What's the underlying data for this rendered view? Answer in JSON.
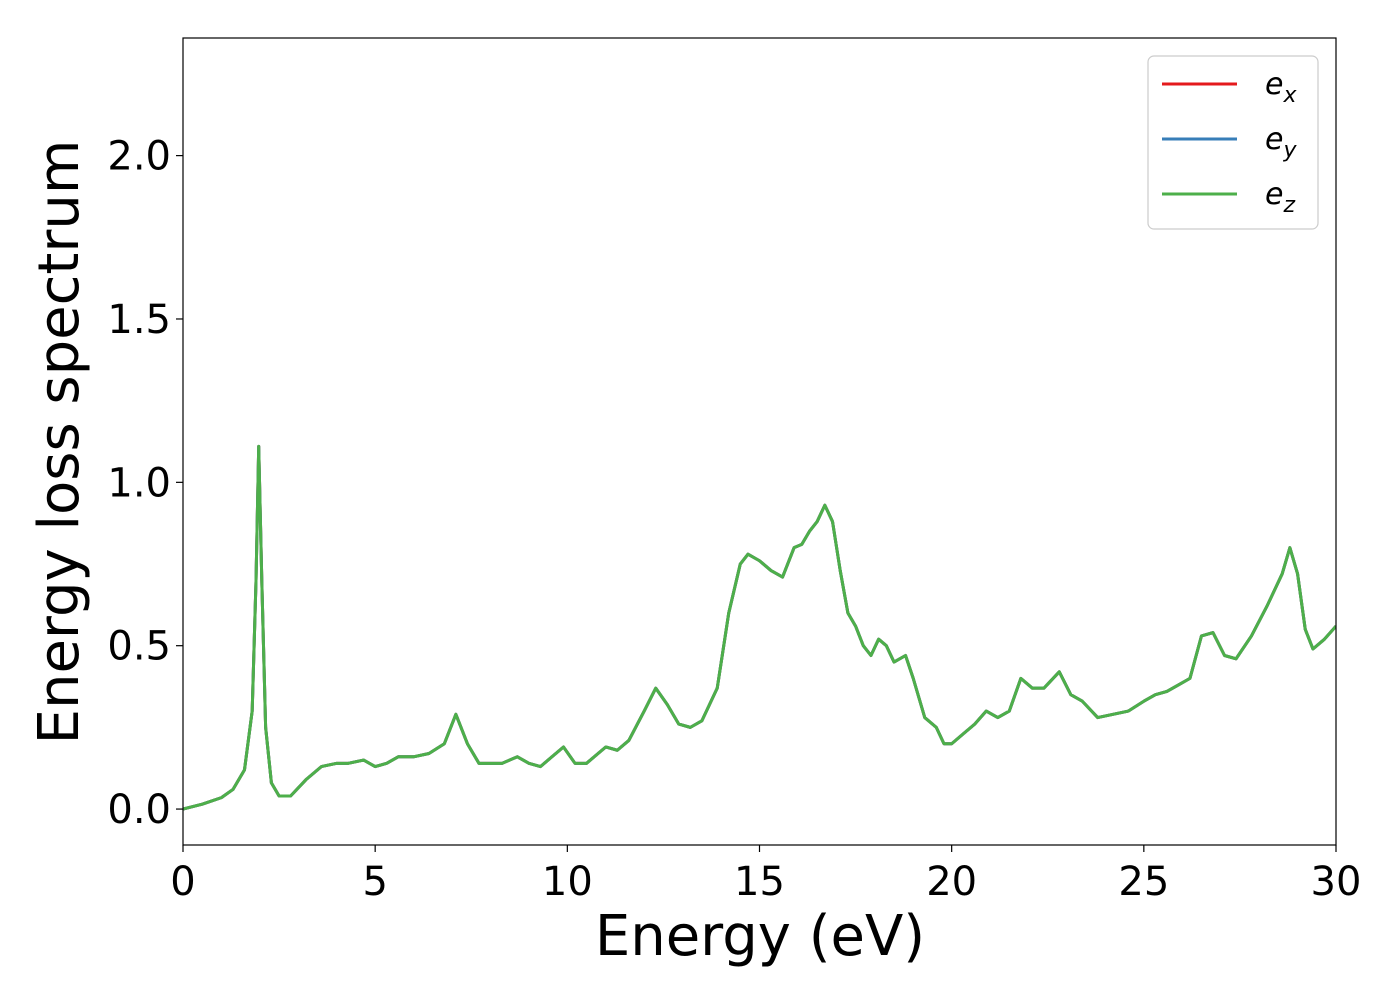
{
  "chart_data": {
    "type": "line",
    "title": "",
    "xlabel": "Energy (eV)",
    "ylabel": "Energy loss spectrum",
    "xlim": [
      0,
      30
    ],
    "ylim": [
      -0.11,
      2.36
    ],
    "xticks": [
      0,
      5,
      10,
      15,
      20,
      25,
      30
    ],
    "xtick_labels": [
      "0",
      "5",
      "10",
      "15",
      "20",
      "25",
      "30"
    ],
    "yticks": [
      0.0,
      0.5,
      1.0,
      1.5,
      2.0
    ],
    "ytick_labels": [
      "0.0",
      "0.5",
      "1.0",
      "1.5",
      "2.0"
    ],
    "grid": false,
    "legend_position": "top-right",
    "note_overlap": "All three series coincide; the green curve is drawn on top.",
    "x": [
      0.0,
      0.5,
      1.0,
      1.3,
      1.6,
      1.8,
      1.9,
      1.97,
      2.05,
      2.15,
      2.3,
      2.5,
      2.8,
      3.2,
      3.6,
      4.0,
      4.3,
      4.7,
      5.0,
      5.3,
      5.6,
      6.0,
      6.4,
      6.8,
      7.1,
      7.4,
      7.7,
      8.0,
      8.3,
      8.7,
      9.0,
      9.3,
      9.6,
      9.9,
      10.2,
      10.5,
      10.8,
      11.0,
      11.3,
      11.6,
      12.0,
      12.3,
      12.6,
      12.9,
      13.2,
      13.5,
      13.9,
      14.2,
      14.5,
      14.7,
      15.0,
      15.3,
      15.6,
      15.9,
      16.1,
      16.3,
      16.5,
      16.7,
      16.9,
      17.1,
      17.3,
      17.5,
      17.7,
      17.9,
      18.1,
      18.3,
      18.5,
      18.8,
      19.0,
      19.3,
      19.6,
      19.8,
      20.0,
      20.3,
      20.6,
      20.9,
      21.2,
      21.5,
      21.8,
      22.1,
      22.4,
      22.8,
      23.1,
      23.4,
      23.8,
      24.2,
      24.6,
      25.0,
      25.3,
      25.6,
      25.9,
      26.2,
      26.5,
      26.8,
      27.1,
      27.4,
      27.8,
      28.2,
      28.6,
      28.8,
      29.0,
      29.2,
      29.4,
      29.7,
      30.0
    ],
    "series": [
      {
        "name": "e_x",
        "color": "#e41a1c",
        "values": [
          0.0,
          0.015,
          0.035,
          0.06,
          0.12,
          0.3,
          0.7,
          1.11,
          0.7,
          0.25,
          0.08,
          0.04,
          0.04,
          0.09,
          0.13,
          0.14,
          0.14,
          0.15,
          0.13,
          0.14,
          0.16,
          0.16,
          0.17,
          0.2,
          0.29,
          0.2,
          0.14,
          0.14,
          0.14,
          0.16,
          0.14,
          0.13,
          0.16,
          0.19,
          0.14,
          0.14,
          0.17,
          0.19,
          0.18,
          0.21,
          0.3,
          0.37,
          0.32,
          0.26,
          0.25,
          0.27,
          0.37,
          0.6,
          0.75,
          0.78,
          0.76,
          0.73,
          0.71,
          0.8,
          0.81,
          0.85,
          0.88,
          0.93,
          0.88,
          0.73,
          0.6,
          0.56,
          0.5,
          0.47,
          0.52,
          0.5,
          0.45,
          0.47,
          0.4,
          0.28,
          0.25,
          0.2,
          0.2,
          0.23,
          0.26,
          0.3,
          0.28,
          0.3,
          0.4,
          0.37,
          0.37,
          0.42,
          0.35,
          0.33,
          0.28,
          0.29,
          0.3,
          0.33,
          0.35,
          0.36,
          0.38,
          0.4,
          0.53,
          0.54,
          0.47,
          0.46,
          0.53,
          0.62,
          0.72,
          0.8,
          0.72,
          0.55,
          0.49,
          0.52,
          0.56
        ]
      },
      {
        "name": "e_y",
        "color": "#377eb8",
        "values": [
          0.0,
          0.015,
          0.035,
          0.06,
          0.12,
          0.3,
          0.7,
          1.11,
          0.7,
          0.25,
          0.08,
          0.04,
          0.04,
          0.09,
          0.13,
          0.14,
          0.14,
          0.15,
          0.13,
          0.14,
          0.16,
          0.16,
          0.17,
          0.2,
          0.29,
          0.2,
          0.14,
          0.14,
          0.14,
          0.16,
          0.14,
          0.13,
          0.16,
          0.19,
          0.14,
          0.14,
          0.17,
          0.19,
          0.18,
          0.21,
          0.3,
          0.37,
          0.32,
          0.26,
          0.25,
          0.27,
          0.37,
          0.6,
          0.75,
          0.78,
          0.76,
          0.73,
          0.71,
          0.8,
          0.81,
          0.85,
          0.88,
          0.93,
          0.88,
          0.73,
          0.6,
          0.56,
          0.5,
          0.47,
          0.52,
          0.5,
          0.45,
          0.47,
          0.4,
          0.28,
          0.25,
          0.2,
          0.2,
          0.23,
          0.26,
          0.3,
          0.28,
          0.3,
          0.4,
          0.37,
          0.37,
          0.42,
          0.35,
          0.33,
          0.28,
          0.29,
          0.3,
          0.33,
          0.35,
          0.36,
          0.38,
          0.4,
          0.53,
          0.54,
          0.47,
          0.46,
          0.53,
          0.62,
          0.72,
          0.8,
          0.72,
          0.55,
          0.49,
          0.52,
          0.56
        ]
      },
      {
        "name": "e_z",
        "color": "#4daf4a",
        "values": [
          0.0,
          0.015,
          0.035,
          0.06,
          0.12,
          0.3,
          0.7,
          1.11,
          0.7,
          0.25,
          0.08,
          0.04,
          0.04,
          0.09,
          0.13,
          0.14,
          0.14,
          0.15,
          0.13,
          0.14,
          0.16,
          0.16,
          0.17,
          0.2,
          0.29,
          0.2,
          0.14,
          0.14,
          0.14,
          0.16,
          0.14,
          0.13,
          0.16,
          0.19,
          0.14,
          0.14,
          0.17,
          0.19,
          0.18,
          0.21,
          0.3,
          0.37,
          0.32,
          0.26,
          0.25,
          0.27,
          0.37,
          0.6,
          0.75,
          0.78,
          0.76,
          0.73,
          0.71,
          0.8,
          0.81,
          0.85,
          0.88,
          0.93,
          0.88,
          0.73,
          0.6,
          0.56,
          0.5,
          0.47,
          0.52,
          0.5,
          0.45,
          0.47,
          0.4,
          0.28,
          0.25,
          0.2,
          0.2,
          0.23,
          0.26,
          0.3,
          0.28,
          0.3,
          0.4,
          0.37,
          0.37,
          0.42,
          0.35,
          0.33,
          0.28,
          0.29,
          0.3,
          0.33,
          0.35,
          0.36,
          0.38,
          0.4,
          0.53,
          0.54,
          0.47,
          0.46,
          0.53,
          0.62,
          0.72,
          0.8,
          0.72,
          0.55,
          0.49,
          0.52,
          0.56
        ]
      }
    ],
    "legend": [
      {
        "base": "e",
        "sub": "x",
        "color": "#e41a1c"
      },
      {
        "base": "e",
        "sub": "y",
        "color": "#377eb8"
      },
      {
        "base": "e",
        "sub": "z",
        "color": "#4daf4a"
      }
    ]
  }
}
